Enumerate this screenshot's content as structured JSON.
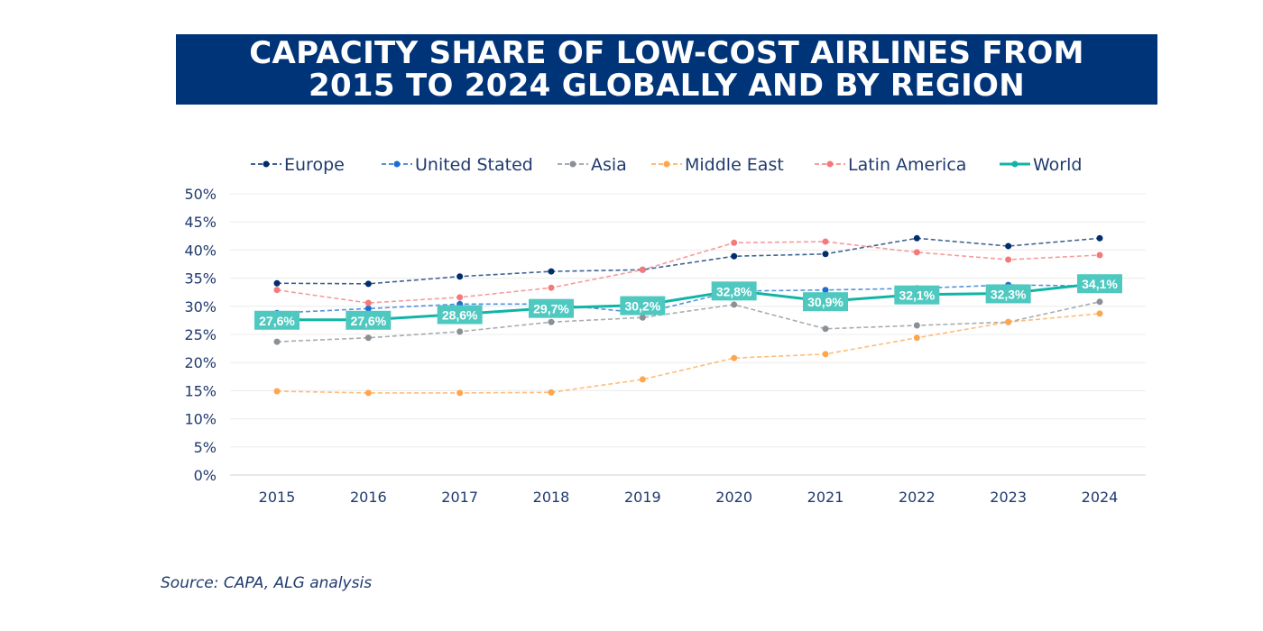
{
  "chart_data": {
    "type": "line",
    "title": "CAPACITY SHARE OF LOW-COST AIRLINES FROM 2015 TO 2024 GLOBALLY AND BY REGION",
    "source": "Source: CAPA, ALG analysis",
    "categories": [
      "2015",
      "2016",
      "2017",
      "2018",
      "2019",
      "2020",
      "2021",
      "2022",
      "2023",
      "2024"
    ],
    "ylim": [
      0,
      50
    ],
    "yticks": [
      "0%",
      "5%",
      "10%",
      "15%",
      "20%",
      "25%",
      "30%",
      "35%",
      "40%",
      "45%",
      "50%"
    ],
    "grid": true,
    "legend_position": "top",
    "series": [
      {
        "name": "Europe",
        "color": "#002d6e",
        "dashed": true,
        "values": [
          34.1,
          34.0,
          35.3,
          36.2,
          36.5,
          38.9,
          39.3,
          42.1,
          40.7,
          42.1
        ]
      },
      {
        "name": "United Stated",
        "color": "#1a6fd1",
        "dashed": true,
        "values": [
          28.8,
          29.6,
          30.4,
          30.4,
          28.8,
          32.7,
          32.9,
          33.2,
          33.8,
          33.6
        ]
      },
      {
        "name": "Asia",
        "color": "#8a9096",
        "dashed": true,
        "values": [
          23.7,
          24.4,
          25.5,
          27.2,
          28.0,
          30.3,
          26.0,
          26.6,
          27.2,
          30.8
        ]
      },
      {
        "name": "Middle East",
        "color": "#ffa64d",
        "dashed": true,
        "values": [
          14.9,
          14.6,
          14.6,
          14.7,
          17.0,
          20.8,
          21.5,
          24.4,
          27.2,
          28.7
        ]
      },
      {
        "name": "Latin America",
        "color": "#f47a7a",
        "dashed": true,
        "values": [
          32.9,
          30.6,
          31.6,
          33.3,
          36.5,
          41.3,
          41.5,
          39.6,
          38.3,
          39.1
        ]
      },
      {
        "name": "World",
        "color": "#10b5a6",
        "dashed": false,
        "values": [
          27.6,
          27.6,
          28.6,
          29.7,
          30.2,
          32.8,
          30.9,
          32.1,
          32.3,
          34.1
        ],
        "labels": [
          "27,6%",
          "27,6%",
          "28,6%",
          "29,7%",
          "30,2%",
          "32,8%",
          "30,9%",
          "32,1%",
          "32,3%",
          "34,1%"
        ]
      }
    ]
  }
}
